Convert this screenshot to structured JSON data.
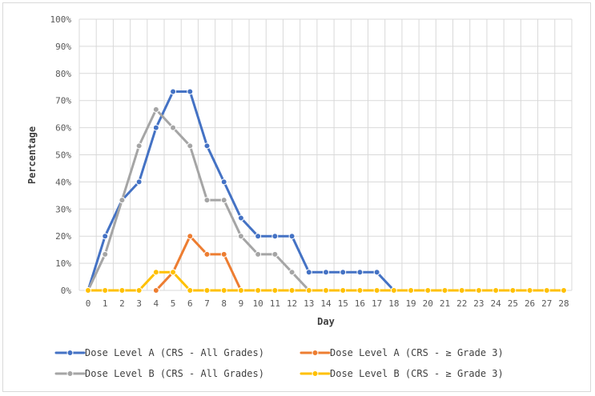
{
  "chart_data": {
    "type": "line",
    "xlabel": "Day",
    "ylabel": "Percentage",
    "x": [
      0,
      1,
      2,
      3,
      4,
      5,
      6,
      7,
      8,
      9,
      10,
      11,
      12,
      13,
      14,
      15,
      16,
      17,
      18,
      19,
      20,
      21,
      22,
      23,
      24,
      25,
      26,
      27,
      28
    ],
    "ylim": [
      0,
      100
    ],
    "yticks": [
      "0%",
      "10%",
      "20%",
      "30%",
      "40%",
      "50%",
      "60%",
      "70%",
      "80%",
      "90%",
      "100%"
    ],
    "grid": true,
    "legend_position": "bottom",
    "series": [
      {
        "name": "Dose Level A (CRS - All Grades)",
        "color": "#4472c4",
        "x": [
          0,
          1,
          2,
          3,
          4,
          5,
          6,
          7,
          8,
          9,
          10,
          11,
          12,
          13,
          14,
          15,
          16,
          17,
          18,
          19,
          20,
          21,
          22,
          23,
          24,
          25,
          26,
          27,
          28
        ],
        "values": [
          0,
          20,
          33.3,
          40,
          60,
          73.3,
          73.3,
          53.3,
          40,
          26.7,
          20,
          20,
          20,
          6.7,
          6.7,
          6.7,
          6.7,
          6.7,
          0,
          0,
          0,
          0,
          0,
          0,
          0,
          0,
          0,
          0,
          0
        ]
      },
      {
        "name": "Dose Level A (CRS - ≥ Grade 3)",
        "color": "#ed7d31",
        "x": [
          4,
          5,
          6,
          7,
          8,
          9
        ],
        "values": [
          0,
          6.7,
          20,
          13.3,
          13.3,
          0
        ]
      },
      {
        "name": "Dose Level B (CRS - All Grades)",
        "color": "#a5a5a5",
        "x": [
          0,
          1,
          2,
          3,
          4,
          5,
          6,
          7,
          8,
          9,
          10,
          11,
          12,
          13
        ],
        "values": [
          0,
          13.3,
          33.3,
          53.3,
          66.7,
          60,
          53.3,
          33.3,
          33.3,
          20,
          13.3,
          13.3,
          6.7,
          0
        ]
      },
      {
        "name": "Dose Level B (CRS - ≥ Grade 3)",
        "color": "#ffc000",
        "x": [
          0,
          1,
          2,
          3,
          4,
          5,
          6,
          7,
          8,
          9,
          10,
          11,
          12,
          13,
          14,
          15,
          16,
          17,
          18,
          19,
          20,
          21,
          22,
          23,
          24,
          25,
          26,
          27,
          28
        ],
        "values": [
          0,
          0,
          0,
          0,
          6.7,
          6.7,
          0,
          0,
          0,
          0,
          0,
          0,
          0,
          0,
          0,
          0,
          0,
          0,
          0,
          0,
          0,
          0,
          0,
          0,
          0,
          0,
          0,
          0,
          0
        ]
      }
    ]
  }
}
